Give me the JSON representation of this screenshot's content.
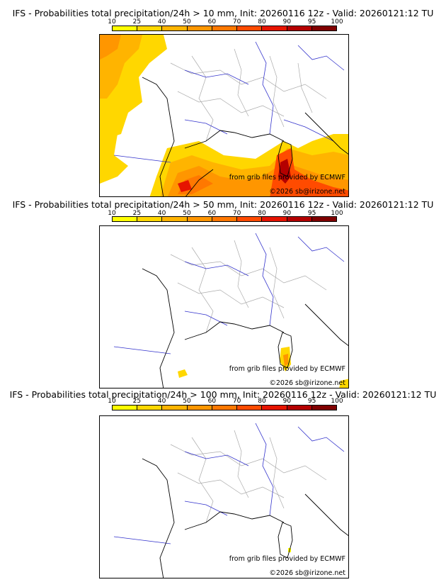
{
  "colorbar": {
    "ticks": [
      "10",
      "25",
      "40",
      "50",
      "60",
      "70",
      "80",
      "90",
      "95",
      "100"
    ],
    "colors": [
      "#ffff00",
      "#ffd700",
      "#ffb400",
      "#ff9600",
      "#ff7800",
      "#ff4b00",
      "#e61400",
      "#b40000",
      "#800000"
    ]
  },
  "panels": [
    {
      "title": "IFS - Probabilities total precipitation/24h > 10 mm, Init: 20260116 12z - Valid: 20260121:12 TU",
      "credit_source": "from grib files provided by ECMWF",
      "credit_author": "©2026 sb@irizone.net"
    },
    {
      "title": "IFS - Probabilities total precipitation/24h > 50 mm, Init: 20260116 12z - Valid: 20260121:12 TU",
      "credit_source": "from grib files provided by ECMWF",
      "credit_author": "©2026 sb@irizone.net"
    },
    {
      "title": "IFS - Probabilities total precipitation/24h > 100 mm, Init: 20260116 12z - Valid: 20260121:12 TU",
      "credit_source": "from grib files provided by ECMWF",
      "credit_author": "©2026 sb@irizone.net"
    }
  ],
  "colors": {
    "coast": "#000000",
    "rivers": "#3333cc",
    "borders": "#aaaaaa"
  }
}
